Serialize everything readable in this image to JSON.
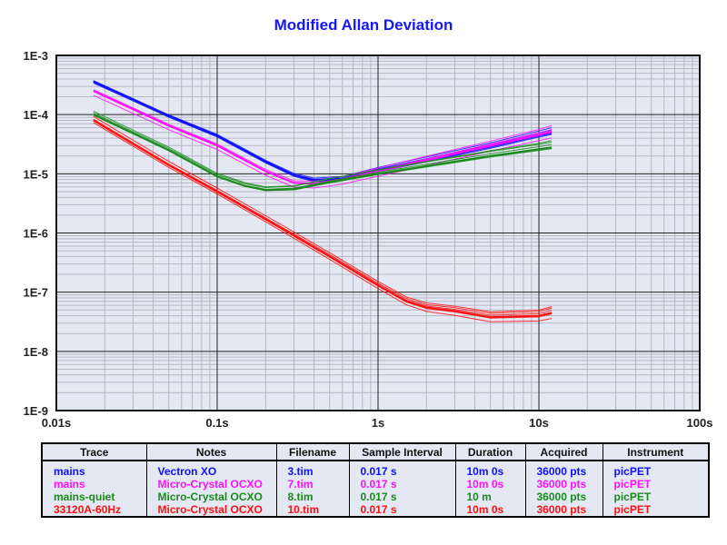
{
  "chart_data": {
    "type": "line",
    "title": "Modified Allan Deviation",
    "xscale": "log",
    "yscale": "log",
    "xlim": [
      0.01,
      100
    ],
    "ylim": [
      1e-09,
      0.001
    ],
    "xticks": [
      {
        "v": 0.01,
        "label": "0.01s"
      },
      {
        "v": 0.1,
        "label": "0.1s"
      },
      {
        "v": 1,
        "label": "1s"
      },
      {
        "v": 10,
        "label": "10s"
      },
      {
        "v": 100,
        "label": "100s"
      }
    ],
    "yticks": [
      {
        "v": 0.001,
        "label": "1E-3"
      },
      {
        "v": 0.0001,
        "label": "1E-4"
      },
      {
        "v": 1e-05,
        "label": "1E-5"
      },
      {
        "v": 1e-06,
        "label": "1E-6"
      },
      {
        "v": 1e-07,
        "label": "1E-7"
      },
      {
        "v": 1e-08,
        "label": "1E-8"
      },
      {
        "v": 1e-09,
        "label": "1E-9"
      }
    ],
    "grid": true,
    "series": [
      {
        "name": "mains / Vectron XO",
        "color": "#1010ff",
        "x": [
          0.017,
          0.05,
          0.1,
          0.2,
          0.3,
          0.4,
          0.6,
          1,
          2,
          5,
          10,
          12
        ],
        "y": [
          0.00036,
          9.5e-05,
          4.4e-05,
          1.6e-05,
          9.5e-06,
          7.8e-06,
          8.2e-06,
          1.15e-05,
          1.7e-05,
          2.9e-05,
          4.5e-05,
          5e-05
        ],
        "run_factors": [
          1,
          1.1,
          0.92,
          1.2,
          0.85
        ]
      },
      {
        "name": "mains / Micro-Crystal OCXO",
        "color": "#ff10ff",
        "x": [
          0.017,
          0.05,
          0.1,
          0.2,
          0.3,
          0.4,
          0.6,
          1,
          2,
          5,
          10,
          12
        ],
        "y": [
          0.00025,
          6.5e-05,
          3e-05,
          1.1e-05,
          7e-06,
          6.8e-06,
          8e-06,
          1.1e-05,
          1.7e-05,
          3e-05,
          4.6e-05,
          5.2e-05
        ],
        "run_factors": [
          1,
          1.08,
          0.93,
          1.25,
          0.6
        ]
      },
      {
        "name": "mains-quiet / Micro-Crystal OCXO",
        "color": "#1a8a1a",
        "x": [
          0.017,
          0.05,
          0.1,
          0.15,
          0.2,
          0.3,
          0.5,
          1,
          2,
          5,
          10,
          12
        ],
        "y": [
          0.0001,
          2.5e-05,
          9e-06,
          6.2e-06,
          5.3e-06,
          5.5e-06,
          7.2e-06,
          1e-05,
          1.35e-05,
          2e-05,
          2.6e-05,
          2.8e-05
        ],
        "run_factors": [
          1,
          1.12,
          0.9,
          1.3,
          1.5
        ]
      },
      {
        "name": "33120A-60Hz / Micro-Crystal OCXO",
        "color": "#ff1010",
        "x": [
          0.017,
          0.05,
          0.1,
          0.2,
          0.3,
          0.5,
          1,
          1.5,
          2,
          3,
          5,
          10,
          12
        ],
        "y": [
          8e-05,
          1.4e-05,
          5e-06,
          1.7e-06,
          9e-07,
          4e-07,
          1.3e-07,
          7e-08,
          5.5e-08,
          4.8e-08,
          3.8e-08,
          4e-08,
          4.5e-08
        ],
        "run_factors": [
          1,
          1.1,
          0.9,
          1.2,
          1.6,
          0.8
        ]
      }
    ]
  },
  "table": {
    "headers": [
      "Trace",
      "Notes",
      "Filename",
      "Sample Interval",
      "Duration",
      "Acquired",
      "Instrument"
    ],
    "rows": [
      {
        "color": "#1010ff",
        "cells": [
          "mains",
          "Vectron XO",
          "3.tim",
          "0.017 s",
          "10m 0s",
          "36000 pts",
          "picPET"
        ]
      },
      {
        "color": "#ff10ff",
        "cells": [
          "mains",
          "Micro-Crystal OCXO",
          "7.tim",
          "0.017 s",
          "10m 0s",
          "36000 pts",
          "picPET"
        ]
      },
      {
        "color": "#1a8a1a",
        "cells": [
          "mains-quiet",
          "Micro-Crystal OCXO",
          "8.tim",
          "0.017 s",
          "10 m",
          "36000 pts",
          "picPET"
        ]
      },
      {
        "color": "#ff1010",
        "cells": [
          "33120A-60Hz",
          "Micro-Crystal OCXO",
          "10.tim",
          "0.017 s",
          "10m 0s",
          "36000 pts",
          "picPET"
        ]
      }
    ]
  }
}
